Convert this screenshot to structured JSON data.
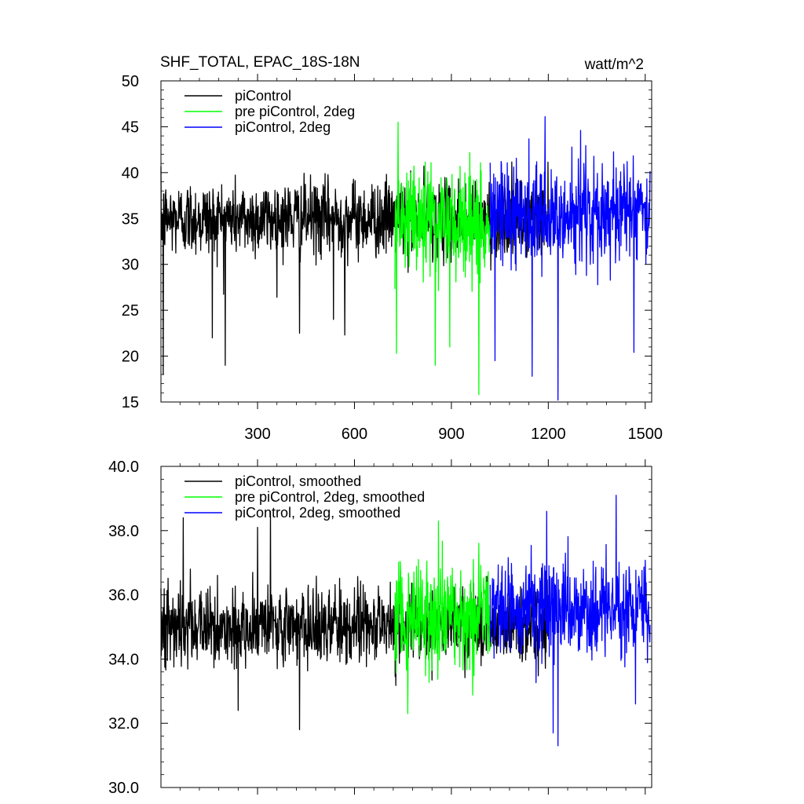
{
  "chart_data": [
    {
      "type": "line",
      "title": "SHF_TOTAL, EPAC_18S-18N",
      "units": "watt/m^2",
      "xlim": [
        1,
        1520
      ],
      "ylim": [
        15,
        50
      ],
      "x_ticks": [
        300,
        600,
        900,
        1200,
        1500
      ],
      "y_ticks": [
        15,
        20,
        25,
        30,
        35,
        40,
        45,
        50
      ],
      "y_tick_decimals": 0,
      "show_x_tick_labels": true,
      "legend": {
        "placement": "top-left"
      },
      "series": [
        {
          "name": "piControl",
          "color": "#000000",
          "x_start": 1,
          "x_end": 1200,
          "mean": 35.0,
          "spread": 3.3,
          "spikes_down": [
            [
              8,
              18.0
            ],
            [
              160,
              22.0
            ],
            [
              200,
              19.0
            ],
            [
              430,
              22.5
            ],
            [
              535,
              24.0
            ],
            [
              570,
              22.3
            ]
          ]
        },
        {
          "name": "pre piControl, 2deg",
          "color": "#00ff00",
          "x_start": 725,
          "x_end": 1020,
          "mean": 34.8,
          "spread": 4.8,
          "spikes_down": [
            [
              730,
              20.3
            ],
            [
              850,
              19.0
            ],
            [
              985,
              15.8
            ],
            [
              895,
              21.0
            ]
          ],
          "spikes_up": [
            [
              735,
              45.5
            ]
          ]
        },
        {
          "name": "piControl, 2deg",
          "color": "#0000ff",
          "x_start": 1020,
          "x_end": 1515,
          "mean": 35.6,
          "spread": 4.2,
          "spikes_down": [
            [
              1035,
              19.5
            ],
            [
              1150,
              17.8
            ],
            [
              1230,
              15.2
            ],
            [
              1465,
              20.4
            ]
          ],
          "spikes_up": [
            [
              1190,
              46.1
            ],
            [
              1300,
              44.6
            ]
          ]
        }
      ]
    },
    {
      "type": "line",
      "title": "",
      "units": "",
      "xlim": [
        1,
        1520
      ],
      "ylim": [
        30,
        40
      ],
      "x_ticks": [
        300,
        600,
        900,
        1200,
        1500
      ],
      "y_ticks": [
        30,
        32,
        34,
        36,
        38,
        40
      ],
      "y_tick_labels": [
        "30.0",
        "32.0",
        "34.0",
        "36.0",
        "38.0",
        "40.0"
      ],
      "show_x_tick_labels": false,
      "legend": {
        "placement": "top-left"
      },
      "series": [
        {
          "name": "piControl, smoothed",
          "color": "#000000",
          "x_start": 1,
          "x_end": 1200,
          "mean": 35.0,
          "spread": 0.95,
          "spikes_down": [
            [
              430,
              31.8
            ],
            [
              240,
              32.4
            ]
          ],
          "spikes_up": [
            [
              70,
              38.4
            ],
            [
              340,
              38.6
            ],
            [
              300,
              38.1
            ]
          ]
        },
        {
          "name": "pre piControl, 2deg, smoothed",
          "color": "#00ff00",
          "x_start": 725,
          "x_end": 1020,
          "mean": 35.3,
          "spread": 1.35,
          "spikes_down": [
            [
              765,
              32.3
            ]
          ],
          "spikes_up": [
            [
              860,
              38.3
            ]
          ]
        },
        {
          "name": "piControl, 2deg, smoothed",
          "color": "#0000ff",
          "x_start": 1020,
          "x_end": 1515,
          "mean": 35.5,
          "spread": 1.2,
          "spikes_down": [
            [
              1230,
              31.3
            ],
            [
              1215,
              31.7
            ],
            [
              1470,
              32.6
            ]
          ],
          "spikes_up": [
            [
              1195,
              38.6
            ],
            [
              1410,
              39.1
            ]
          ]
        }
      ]
    }
  ]
}
